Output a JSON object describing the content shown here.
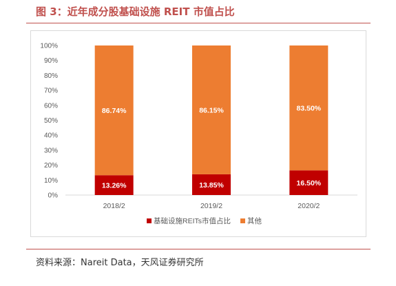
{
  "header": {
    "title": "图 3：近年成分股基础设施 REIT 市值占比"
  },
  "footer": {
    "source": "资料来源：Nareit Data，天风证券研究所"
  },
  "chart_data": {
    "type": "bar",
    "stacked": true,
    "categories": [
      "2018/2",
      "2019/2",
      "2020/2"
    ],
    "series": [
      {
        "name": "基础设施REITs市值占比",
        "values": [
          13.26,
          13.85,
          16.5
        ],
        "labels": [
          "13.26%",
          "13.85%",
          "16.50%"
        ],
        "color": "#c00000"
      },
      {
        "name": "其他",
        "values": [
          86.74,
          86.15,
          83.5
        ],
        "labels": [
          "86.74%",
          "86.15%",
          "83.50%"
        ],
        "color": "#ed7d31"
      }
    ],
    "ylim": [
      0,
      100
    ],
    "yticks": [
      0,
      10,
      20,
      30,
      40,
      50,
      60,
      70,
      80,
      90,
      100
    ],
    "ytick_labels": [
      "0%",
      "10%",
      "20%",
      "30%",
      "40%",
      "50%",
      "60%",
      "70%",
      "80%",
      "90%",
      "100%"
    ],
    "grid": false,
    "legend_position": "bottom"
  }
}
